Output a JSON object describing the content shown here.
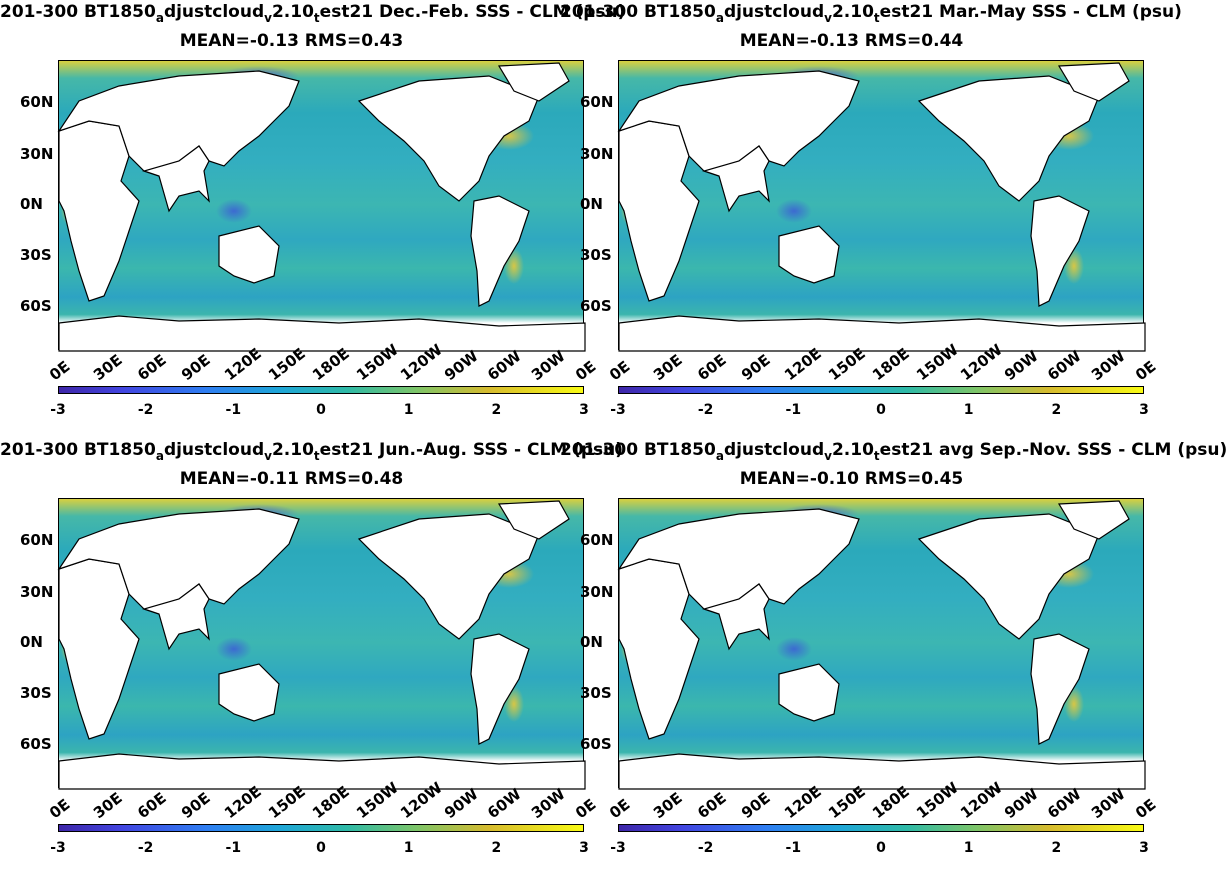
{
  "panels": [
    {
      "title_a": "201-300 BT1850",
      "sub_a": "a",
      "title_b": "djustcloud",
      "sub_b": "v",
      "title_c": "2.10",
      "sub_c": "t",
      "title_d": "est21  Dec.-Feb. SSS - CLM (psu)",
      "stats": "MEAN=-0.13   RMS=0.43"
    },
    {
      "title_a": "201-300 BT1850",
      "sub_a": "a",
      "title_b": "djustcloud",
      "sub_b": "v",
      "title_c": "2.10",
      "sub_c": "t",
      "title_d": "est21 Mar.-May SSS - CLM (psu)",
      "stats": "MEAN=-0.13   RMS=0.44"
    },
    {
      "title_a": "201-300 BT1850",
      "sub_a": "a",
      "title_b": "djustcloud",
      "sub_b": "v",
      "title_c": "2.10",
      "sub_c": "t",
      "title_d": "est21 Jun.-Aug. SSS - CLM (psu)",
      "stats": "MEAN=-0.11   RMS=0.48"
    },
    {
      "title_a": "201-300 BT1850",
      "sub_a": "a",
      "title_b": "djustcloud",
      "sub_b": "v",
      "title_c": "2.10",
      "sub_c": "t",
      "title_d": "est21 avg Sep.-Nov. SSS - CLM (psu)",
      "stats": "MEAN=-0.10   RMS=0.45"
    }
  ],
  "lat_labels": [
    "60N",
    "30N",
    "0N",
    "30S",
    "60S"
  ],
  "lon_labels": [
    "0E",
    "30E",
    "60E",
    "90E",
    "120E",
    "150E",
    "180E",
    "150W",
    "120W",
    "90W",
    "60W",
    "30W",
    "0E"
  ],
  "colorbar": {
    "ticks": [
      "-3",
      "-2",
      "-1",
      "0",
      "1",
      "2",
      "3"
    ],
    "colormap": "parula",
    "min": -3,
    "max": 3
  },
  "colors": {
    "low": "#3e26a8",
    "mid": "#2fb1b8",
    "high": "#f9fb15"
  }
}
